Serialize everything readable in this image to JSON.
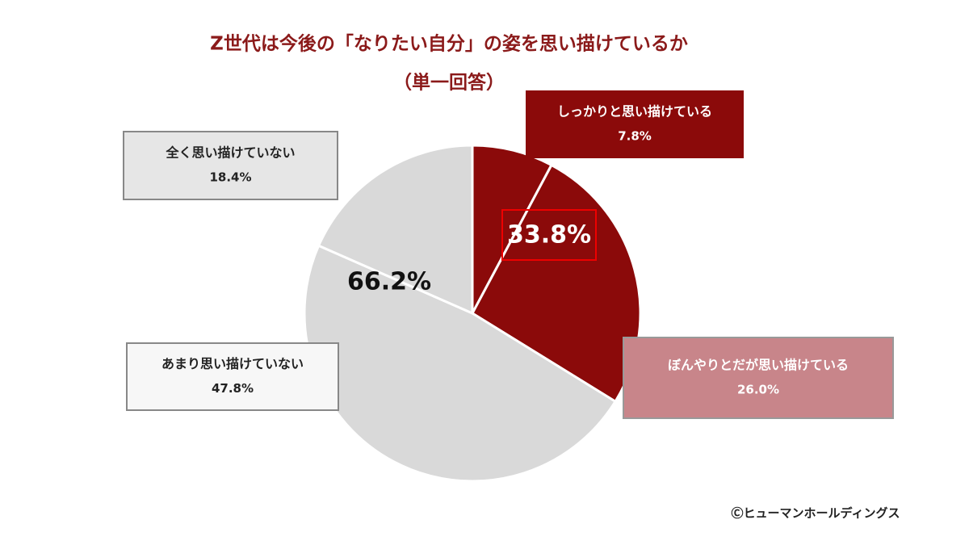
{
  "chart_data": {
    "type": "pie",
    "title": "Z世代は今後の「なりたい自分」の姿を思い描けているか",
    "subtitle": "（単一回答）",
    "categories": [
      "しっかりと思い描けている",
      "ぼんやりとだが思い描けている",
      "あまり思い描けていない",
      "全く思い描けていない"
    ],
    "values": [
      7.8,
      26.0,
      47.8,
      18.4
    ],
    "value_labels": [
      "7.8%",
      "26.0%",
      "47.8%",
      "18.4%"
    ],
    "colors": [
      "#8b0a0a",
      "#8b0a0a",
      "#d9d9d9",
      "#d9d9d9"
    ],
    "groups": {
      "values": [
        33.8,
        66.2
      ],
      "value_labels": [
        "33.8%",
        "66.2%"
      ]
    },
    "copyright": "Ⓒヒューマンホールディングス"
  }
}
